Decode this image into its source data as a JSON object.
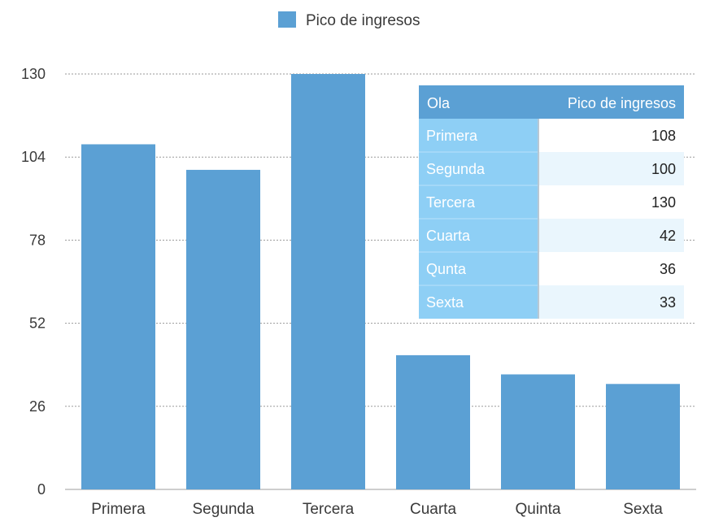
{
  "chart_data": {
    "type": "bar",
    "categories": [
      "Primera",
      "Segunda",
      "Tercera",
      "Cuarta",
      "Quinta",
      "Sexta"
    ],
    "series": [
      {
        "name": "Pico de ingresos",
        "values": [
          108,
          100,
          130,
          42,
          36,
          33
        ]
      }
    ],
    "ylim": [
      0,
      130
    ],
    "yticks": [
      0,
      26,
      52,
      78,
      104,
      130
    ],
    "grid": true,
    "legend": "top-center",
    "colors": {
      "bar": "#5ba0d4",
      "table_header": "#5ba0d4",
      "table_label_col": "#8ecff5",
      "table_row_alt": "#eaf6fd"
    },
    "table": {
      "headers": [
        "Ola",
        "Pico de ingresos"
      ],
      "rows": [
        [
          "Primera",
          "108"
        ],
        [
          "Segunda",
          "100"
        ],
        [
          "Tercera",
          "130"
        ],
        [
          "Cuarta",
          "42"
        ],
        [
          "Qunta",
          "36"
        ],
        [
          "Sexta",
          "33"
        ]
      ]
    }
  }
}
